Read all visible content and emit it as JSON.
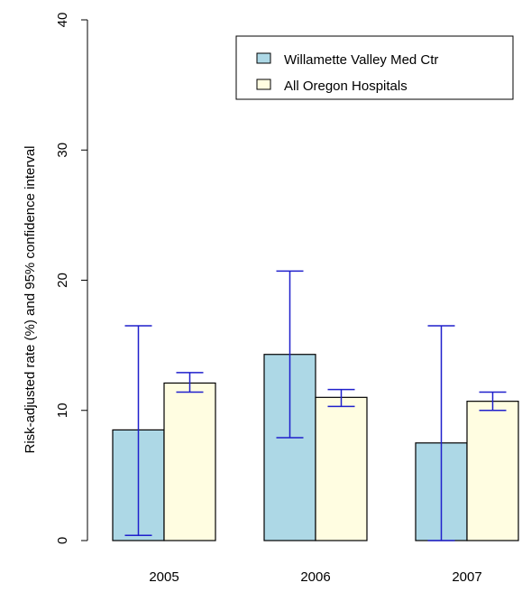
{
  "chart_data": {
    "type": "bar",
    "title": "",
    "xlabel": "",
    "ylabel": "Risk-adjusted rate (%) and 95% confidence interval",
    "ylim": [
      0,
      40
    ],
    "yticks": [
      "0",
      "10",
      "20",
      "30",
      "40"
    ],
    "categories": [
      "2005",
      "2006",
      "2007"
    ],
    "grid": false,
    "legend_position": "top-right",
    "series": [
      {
        "name": "Willamette Valley Med Ctr",
        "color": "#add8e6",
        "values": [
          8.5,
          14.3,
          7.5
        ],
        "ci_low": [
          0.4,
          7.9,
          0.0
        ],
        "ci_high": [
          16.5,
          20.7,
          16.5
        ]
      },
      {
        "name": "All Oregon Hospitals",
        "color": "#fffde1",
        "values": [
          12.1,
          11.0,
          10.7
        ],
        "ci_low": [
          11.4,
          10.3,
          10.0
        ],
        "ci_high": [
          12.9,
          11.6,
          11.4
        ]
      }
    ],
    "error_bar_color": "#1f1fcc"
  }
}
